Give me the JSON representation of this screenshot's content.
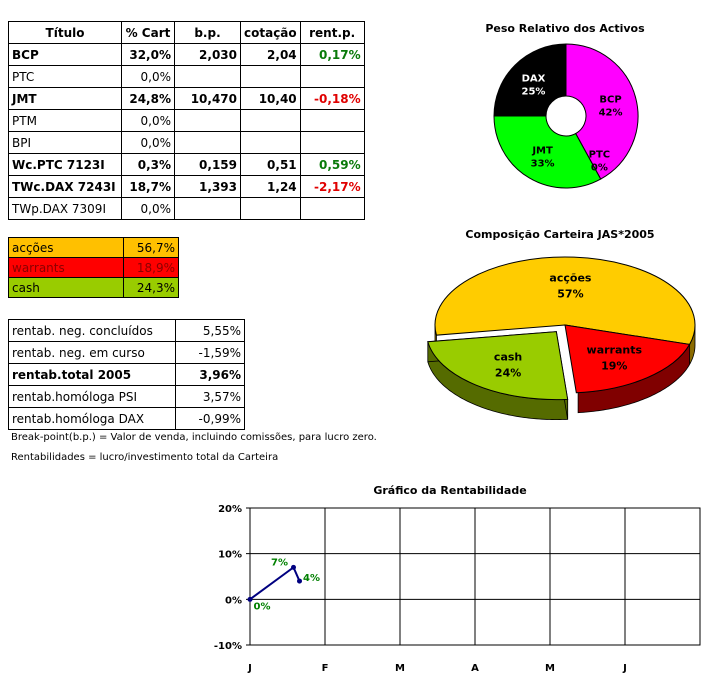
{
  "portfolio": {
    "headers": [
      "Título",
      "% Cart",
      "b.p.",
      "cotação",
      "rent.p."
    ],
    "rows": [
      {
        "title": "BCP",
        "cart": "32,0%",
        "bp": "2,030",
        "cot": "2,04",
        "rent": "0,17%",
        "bold": true,
        "sign": "pos"
      },
      {
        "title": "PTC",
        "cart": "0,0%",
        "bp": "",
        "cot": "",
        "rent": "",
        "bold": false,
        "sign": ""
      },
      {
        "title": "JMT",
        "cart": "24,8%",
        "bp": "10,470",
        "cot": "10,40",
        "rent": "-0,18%",
        "bold": true,
        "sign": "neg"
      },
      {
        "title": "PTM",
        "cart": "0,0%",
        "bp": "",
        "cot": "",
        "rent": "",
        "bold": false,
        "sign": ""
      },
      {
        "title": "BPI",
        "cart": "0,0%",
        "bp": "",
        "cot": "",
        "rent": "",
        "bold": false,
        "sign": ""
      },
      {
        "title": "Wc.PTC 7123I",
        "cart": "0,3%",
        "bp": "0,159",
        "cot": "0,51",
        "rent": "0,59%",
        "bold": true,
        "sign": "pos"
      },
      {
        "title": "TWc.DAX 7243I",
        "cart": "18,7%",
        "bp": "1,393",
        "cot": "1,24",
        "rent": "-2,17%",
        "bold": true,
        "sign": "neg"
      },
      {
        "title": "TWp.DAX 7309I",
        "cart": "0,0%",
        "bp": "",
        "cot": "",
        "rent": "",
        "bold": false,
        "sign": ""
      }
    ]
  },
  "allocation": [
    {
      "label": "acções",
      "value": "56,7%",
      "color": "#ffc000",
      "text_color": "#000000"
    },
    {
      "label": "warrants",
      "value": "18,9%",
      "color": "#ff0000",
      "text_color": "#8b0000"
    },
    {
      "label": "cash",
      "value": "24,3%",
      "color": "#99cc00",
      "text_color": "#000000"
    }
  ],
  "rentab": [
    {
      "label": "rentab. neg. concluídos",
      "value": "5,55%",
      "bold": false
    },
    {
      "label": "rentab. neg. em curso",
      "value": "-1,59%",
      "bold": false
    },
    {
      "label": "rentab.total 2005",
      "value": "3,96%",
      "bold": true
    },
    {
      "label": "rentab.homóloga PSI",
      "value": "3,57%",
      "bold": false
    },
    {
      "label": "rentab.homóloga DAX",
      "value": "-0,99%",
      "bold": false
    }
  ],
  "notes": {
    "breakpoint": "Break-point(b.p.) = Valor de venda, incluindo comissões, para lucro zero.",
    "rentab": "Rentabilidades = lucro/investimento total da Carteira"
  },
  "chart_data": [
    {
      "type": "pie",
      "title": "Peso Relativo dos Activos",
      "slices": [
        {
          "label": "BCP",
          "value": 42,
          "display": "42%",
          "color": "#ff00ff"
        },
        {
          "label": "PTC",
          "value": 0,
          "display": "0%",
          "color": "#66ccff"
        },
        {
          "label": "JMT",
          "value": 33,
          "display": "33%",
          "color": "#00ff00"
        },
        {
          "label": "DAX",
          "value": 25,
          "display": "25%",
          "color": "#000000"
        }
      ]
    },
    {
      "type": "pie",
      "title": "Composição Carteira JAS*2005",
      "slices": [
        {
          "label": "acções",
          "value": 57,
          "display": "57%",
          "color": "#ffcc00",
          "side": "#8b6b00"
        },
        {
          "label": "warrants",
          "value": 19,
          "display": "19%",
          "color": "#ff0000",
          "side": "#800000"
        },
        {
          "label": "cash",
          "value": 24,
          "display": "24%",
          "color": "#99cc00",
          "side": "#556b00"
        }
      ]
    },
    {
      "type": "line",
      "title": "Gráfico da Rentabilidade",
      "categories": [
        "J",
        "F",
        "M",
        "A",
        "M",
        "J"
      ],
      "ylim": [
        -10,
        20
      ],
      "yticks": [
        -10,
        0,
        10,
        20
      ],
      "ytick_labels": [
        "-10%",
        "0%",
        "10%",
        "20%"
      ],
      "series": [
        {
          "name": "Rentabilidade",
          "x": [
            0,
            0.58,
            0.66
          ],
          "values": [
            0,
            7,
            4
          ],
          "labels": [
            "0%",
            "7%",
            "4%"
          ],
          "color": "#000080"
        }
      ]
    }
  ]
}
